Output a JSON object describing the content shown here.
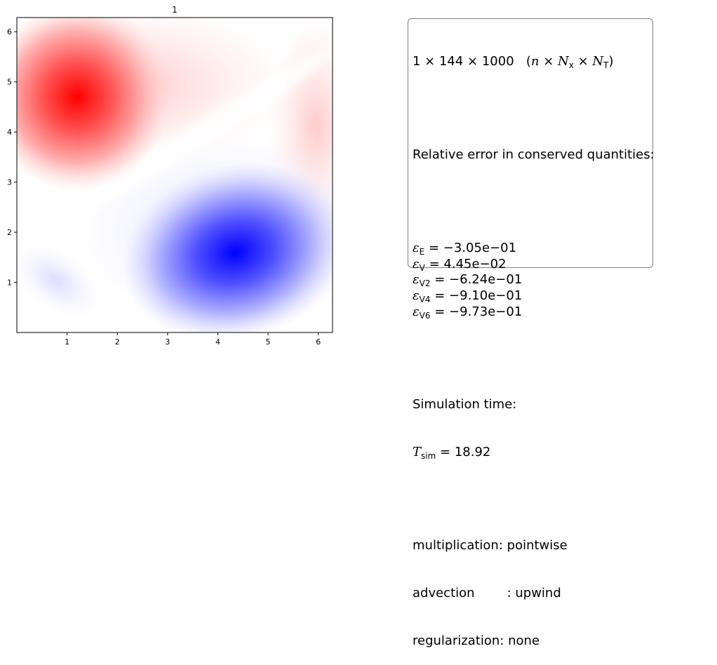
{
  "chart_data": {
    "type": "heatmap",
    "title": "1",
    "xlabel": "",
    "ylabel": "",
    "xlim": [
      0,
      6.2832
    ],
    "ylim": [
      0,
      6.2832
    ],
    "xticks": [
      "1",
      "2",
      "3",
      "4",
      "5",
      "6"
    ],
    "yticks": [
      "1",
      "2",
      "3",
      "4",
      "5",
      "6"
    ],
    "colormap": "bwr",
    "features": [
      {
        "name": "positive vortex",
        "x": 1.2,
        "y": 4.7,
        "sign": "positive"
      },
      {
        "name": "negative vortex",
        "x": 4.35,
        "y": 1.6,
        "sign": "negative"
      }
    ]
  },
  "info": {
    "size_value": "1 × 144 × 1000",
    "size_label": "(n × Nx × NT)",
    "relative_error_heading": "Relative error in conserved quantities:",
    "errors": [
      {
        "symbol": "ε",
        "sub": "E",
        "value": "−3.05e−01"
      },
      {
        "symbol": "ε",
        "sub": "V",
        "value": "4.45e−02"
      },
      {
        "symbol": "ε",
        "sub": "V2",
        "value": "−6.24e−01"
      },
      {
        "symbol": "ε",
        "sub": "V4",
        "value": "−9.10e−01"
      },
      {
        "symbol": "ε",
        "sub": "V6",
        "value": "−9.73e−01"
      }
    ],
    "simulation_time_heading": "Simulation time:",
    "t_sim_symbol": "T",
    "t_sim_sub": "sim",
    "t_sim_value": "18.92",
    "settings": [
      {
        "key": "multiplication",
        "value": "pointwise"
      },
      {
        "key": "advection",
        "value": "upwind"
      },
      {
        "key": "regularization",
        "value": "none"
      }
    ]
  },
  "colors": {
    "positive": "#ff0000",
    "negative": "#0000ff",
    "neutral": "#ffffff",
    "frame": "#000000"
  }
}
